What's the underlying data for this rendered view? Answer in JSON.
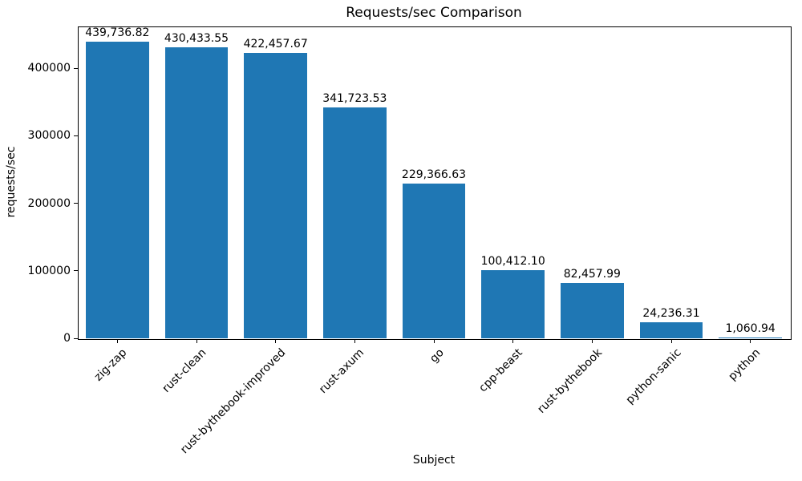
{
  "chart_data": {
    "type": "bar",
    "title": "Requests/sec Comparison",
    "xlabel": "Subject",
    "ylabel": "requests/sec",
    "categories": [
      "zig-zap",
      "rust-clean",
      "rust-bythebook-improved",
      "rust-axum",
      "go",
      "cpp-beast",
      "rust-bythebook",
      "python-sanic",
      "python"
    ],
    "values": [
      439736.82,
      430433.55,
      422457.67,
      341723.53,
      229366.63,
      100412.1,
      82457.99,
      24236.31,
      1060.94
    ],
    "value_labels": [
      "439,736.82",
      "430,433.55",
      "422,457.67",
      "341,723.53",
      "229,366.63",
      "100,412.10",
      "82,457.99",
      "24,236.31",
      "1,060.94"
    ],
    "ytick_labels": [
      "0",
      "100000",
      "200000",
      "300000",
      "400000"
    ],
    "yticks": [
      0,
      100000,
      200000,
      300000,
      400000
    ],
    "ylim": [
      0,
      461724
    ],
    "bar_color": "#1f77b4",
    "axis_color": "#000000",
    "grid": false,
    "legend": null,
    "x_tick_rotation_deg": 45
  }
}
